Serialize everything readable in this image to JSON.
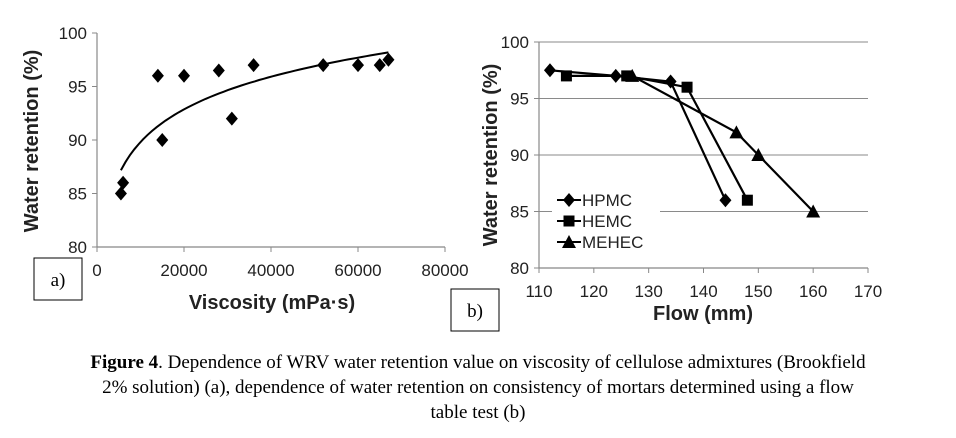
{
  "chart_data": [
    {
      "type": "scatter",
      "panel_label": "a)",
      "xlabel": "Viscosity (mPa·s)",
      "ylabel": "Water retention (%)",
      "xlim": [
        0,
        80000
      ],
      "ylim": [
        80,
        100
      ],
      "x_ticks": [
        "0",
        "20000",
        "40000",
        "60000",
        "80000"
      ],
      "y_ticks": [
        "80",
        "85",
        "90",
        "95",
        "100"
      ],
      "grid": false,
      "points": [
        {
          "x": 5500,
          "y": 85
        },
        {
          "x": 6000,
          "y": 86
        },
        {
          "x": 14000,
          "y": 96
        },
        {
          "x": 15000,
          "y": 90
        },
        {
          "x": 20000,
          "y": 96
        },
        {
          "x": 28000,
          "y": 96.5
        },
        {
          "x": 31000,
          "y": 92
        },
        {
          "x": 36000,
          "y": 97
        },
        {
          "x": 52000,
          "y": 97
        },
        {
          "x": 60000,
          "y": 97
        },
        {
          "x": 65000,
          "y": 97
        },
        {
          "x": 67000,
          "y": 97.5
        }
      ],
      "trendline": {
        "type": "logarithmic",
        "x": [
          5500,
          67000
        ],
        "fit_points": [
          [
            5500,
            87.2
          ],
          [
            15000,
            91.6
          ],
          [
            30000,
            94.6
          ],
          [
            50000,
            96.8
          ],
          [
            67000,
            98.3
          ]
        ]
      }
    },
    {
      "type": "line",
      "panel_label": "b)",
      "xlabel": "Flow (mm)",
      "ylabel": "Water retention (%)",
      "xlim": [
        110,
        170
      ],
      "ylim": [
        80,
        100
      ],
      "x_ticks": [
        "110",
        "120",
        "130",
        "140",
        "150",
        "160",
        "170"
      ],
      "y_ticks": [
        "80",
        "85",
        "90",
        "95",
        "100"
      ],
      "grid": true,
      "legend_position": "bottom-left",
      "series": [
        {
          "name": "HPMC",
          "marker": "diamond",
          "x": [
            112,
            124,
            134,
            144
          ],
          "values": [
            97.5,
            97,
            96.5,
            86
          ]
        },
        {
          "name": "HEMC",
          "marker": "square",
          "x": [
            115,
            126,
            137,
            148
          ],
          "values": [
            97,
            97,
            96,
            86
          ]
        },
        {
          "name": "MEHEC",
          "marker": "triangle",
          "x": [
            127,
            146,
            150,
            160
          ],
          "values": [
            97,
            92,
            90,
            85
          ]
        }
      ]
    }
  ],
  "caption": {
    "label": "Figure 4",
    "text_line1": ". Dependence of WRV water retention value on viscosity of cellulose admixtures (Brookfield",
    "text_line2": "2% solution) (a), dependence of water retention on consistency of mortars determined using a flow",
    "text_line3": "table test (b)"
  },
  "colors": {
    "mark": "#000000",
    "grid": "#8a8a8a",
    "axis": "#888888"
  }
}
